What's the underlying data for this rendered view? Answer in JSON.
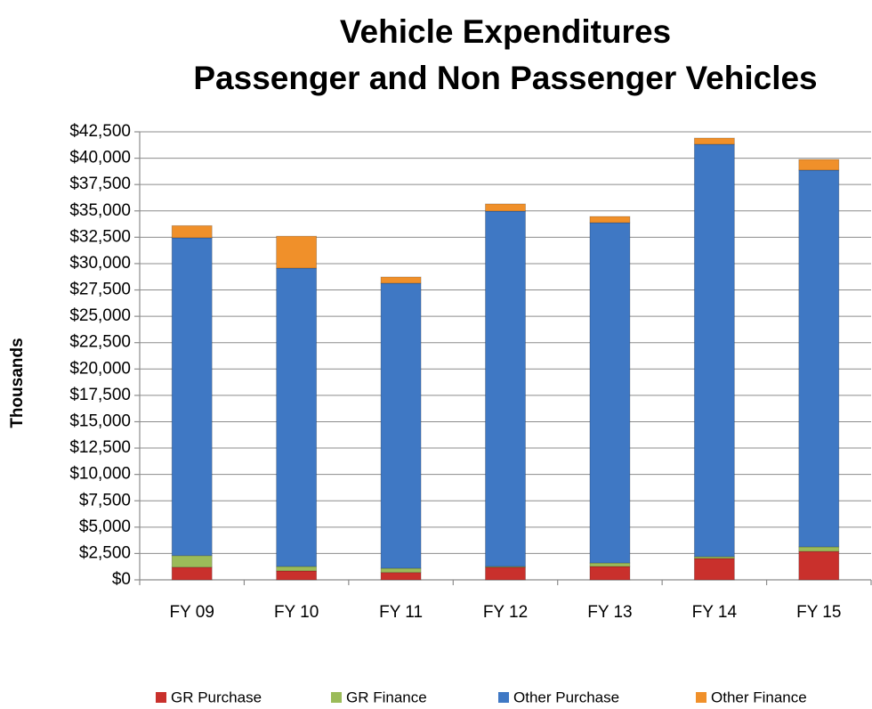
{
  "chart_data": {
    "type": "stacked_bar",
    "title": "Vehicle Expenditures",
    "subtitle": "Passenger and Non Passenger Vehicles",
    "y_label": "Thousands",
    "categories": [
      "FY 09",
      "FY 10",
      "FY 11",
      "FY 12",
      "FY 13",
      "FY 14",
      "FY 15"
    ],
    "series": [
      {
        "name": "GR Purchase",
        "color": "#c9302c",
        "values": [
          1200,
          850,
          700,
          1200,
          1270,
          2030,
          2700
        ]
      },
      {
        "name": "GR Finance",
        "color": "#9bbb59",
        "values": [
          1100,
          420,
          400,
          70,
          330,
          170,
          430
        ]
      },
      {
        "name": "Other Purchase",
        "color": "#3f78c4",
        "values": [
          30150,
          28300,
          27040,
          33710,
          32280,
          39120,
          35740
        ]
      },
      {
        "name": "Other Finance",
        "color": "#f0902a",
        "values": [
          1150,
          3030,
          590,
          680,
          590,
          590,
          1010
        ]
      }
    ],
    "ylim": [
      0,
      42500
    ],
    "yticks": [
      {
        "value": 0,
        "label": "$0"
      },
      {
        "value": 2500,
        "label": "$2,500"
      },
      {
        "value": 5000,
        "label": "$5,000"
      },
      {
        "value": 7500,
        "label": "$7,500"
      },
      {
        "value": 10000,
        "label": "$10,000"
      },
      {
        "value": 12500,
        "label": "$12,500"
      },
      {
        "value": 15000,
        "label": "$15,000"
      },
      {
        "value": 17500,
        "label": "$17,500"
      },
      {
        "value": 20000,
        "label": "$20,000"
      },
      {
        "value": 22500,
        "label": "$22,500"
      },
      {
        "value": 25000,
        "label": "$25,000"
      },
      {
        "value": 27500,
        "label": "$27,500"
      },
      {
        "value": 30000,
        "label": "$30,000"
      },
      {
        "value": 32500,
        "label": "$32,500"
      },
      {
        "value": 35000,
        "label": "$35,000"
      },
      {
        "value": 37500,
        "label": "$37,500"
      },
      {
        "value": 40000,
        "label": "$40,000"
      },
      {
        "value": 42500,
        "label": "$42,500"
      }
    ],
    "grid": true,
    "legend": "bottom"
  }
}
